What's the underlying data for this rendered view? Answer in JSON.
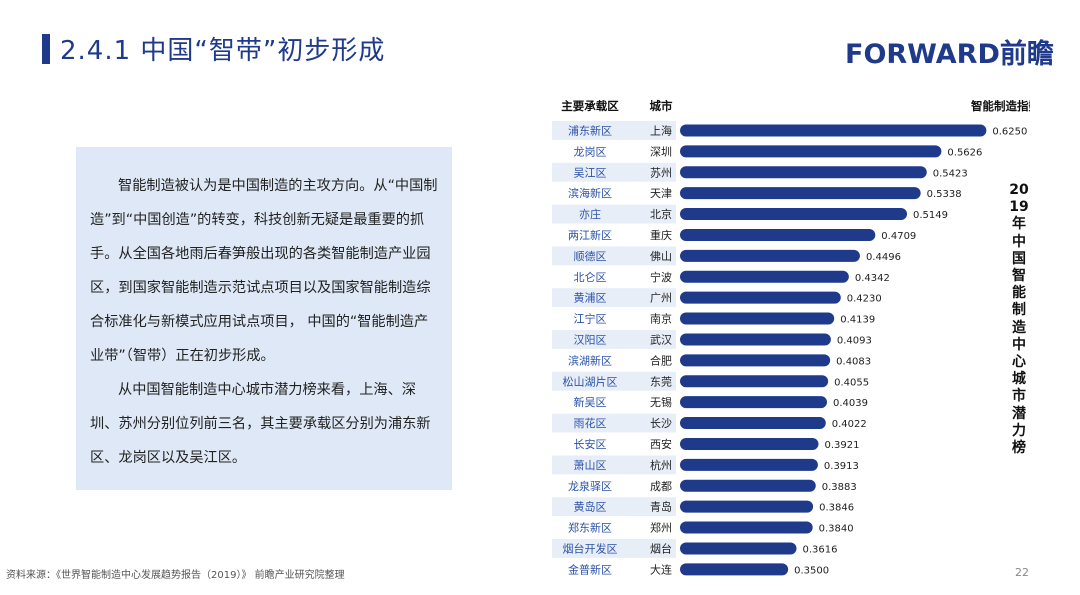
{
  "header": {
    "title": "2.4.1 中国“智带”初步形成",
    "logo_text": "FORWARD前瞻"
  },
  "text_box": {
    "paragraph1": "智能制造被认为是中国制造的主攻方向。从“中国制造”到“中国创造”的转变，科技创新无疑是最重要的抓手。从全国各地雨后春笋般出现的各类智能制造产业园区，到国家智能制造示范试点项目以及国家智能制造综合标准化与新模式应用试点项目， 中国的“智能制造产业带”（智带）正在初步形成。",
    "paragraph2": "从中国智能制造中心城市潜力榜来看，上海、深圳、苏州分别位列前三名，其主要承载区分别为浦东新区、龙岗区以及吴江区。"
  },
  "footer": {
    "source": "资料来源：《世界智能制造中心发展趋势报告（2019）》 前瞻产业研究院整理",
    "page_number": "22"
  },
  "chart_data": {
    "type": "bar",
    "orientation": "horizontal",
    "vertical_label": "2019年中国智能制造中心城市潜力榜",
    "column_headers": {
      "zone": "主要承载区",
      "city": "城市",
      "value": "智能制造指数"
    },
    "zones": [
      "浦东新区",
      "龙岗区",
      "吴江区",
      "滨海新区",
      "亦庄",
      "两江新区",
      "顺德区",
      "北仑区",
      "黄浦区",
      "江宁区",
      "汉阳区",
      "滨湖新区",
      "松山湖片区",
      "新吴区",
      "雨花区",
      "长安区",
      "萧山区",
      "龙泉驿区",
      "黄岛区",
      "郑东新区",
      "烟台开发区",
      "金普新区"
    ],
    "categories": [
      "上海",
      "深圳",
      "苏州",
      "天津",
      "北京",
      "重庆",
      "佛山",
      "宁波",
      "广州",
      "南京",
      "武汉",
      "合肥",
      "东莞",
      "无锡",
      "长沙",
      "西安",
      "杭州",
      "成都",
      "青岛",
      "郑州",
      "烟台",
      "大连"
    ],
    "values": [
      0.625,
      0.5626,
      0.5423,
      0.5338,
      0.5149,
      0.4709,
      0.4496,
      0.4342,
      0.423,
      0.4139,
      0.4093,
      0.4083,
      0.4055,
      0.4039,
      0.4022,
      0.3921,
      0.3913,
      0.3883,
      0.3846,
      0.384,
      0.3616,
      0.35
    ],
    "value_labels": [
      "0.6250",
      "0.5626",
      "0.5423",
      "0.5338",
      "0.5149",
      "0.4709",
      "0.4496",
      "0.4342",
      "0.4230",
      "0.4139",
      "0.4093",
      "0.4083",
      "0.4055",
      "0.4039",
      "0.4022",
      "0.3921",
      "0.3913",
      "0.3883",
      "0.3846",
      "0.3840",
      "0.3616",
      "0.3500"
    ],
    "xlim": [
      0.2,
      0.63
    ],
    "colors": {
      "bar": "#1f3a8a",
      "zone_text": "#2b52a8",
      "city_text": "#222222",
      "row_alt": "#e8eef8"
    }
  }
}
